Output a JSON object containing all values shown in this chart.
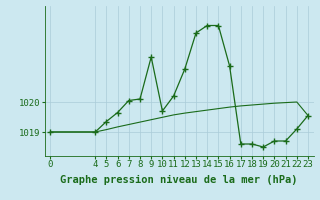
{
  "x_main": [
    0,
    4,
    5,
    6,
    7,
    8,
    9,
    10,
    11,
    12,
    13,
    14,
    15,
    16,
    17,
    18,
    19,
    20,
    21,
    22,
    23
  ],
  "y_main": [
    1019.0,
    1019.0,
    1019.35,
    1019.65,
    1020.05,
    1020.1,
    1021.5,
    1019.7,
    1020.2,
    1021.1,
    1022.3,
    1022.55,
    1022.55,
    1021.2,
    1018.6,
    1018.6,
    1018.5,
    1018.7,
    1018.7,
    1019.1,
    1019.55
  ],
  "x_trend": [
    0,
    4,
    5,
    6,
    7,
    8,
    9,
    10,
    11,
    12,
    13,
    14,
    15,
    16,
    17,
    18,
    19,
    20,
    21,
    22,
    23
  ],
  "y_trend": [
    1019.0,
    1019.0,
    1019.08,
    1019.17,
    1019.25,
    1019.33,
    1019.41,
    1019.49,
    1019.57,
    1019.63,
    1019.68,
    1019.73,
    1019.78,
    1019.83,
    1019.87,
    1019.9,
    1019.93,
    1019.96,
    1019.98,
    1020.0,
    1019.55
  ],
  "bg_color": "#cce8f0",
  "line_color": "#1a6b1a",
  "grid_color": "#aaccd8",
  "xlabel": "Graphe pression niveau de la mer (hPa)",
  "xticks": [
    0,
    4,
    5,
    6,
    7,
    8,
    9,
    10,
    11,
    12,
    13,
    14,
    15,
    16,
    17,
    18,
    19,
    20,
    21,
    22,
    23
  ],
  "ytick_labels": [
    "1019",
    "1020"
  ],
  "ytick_values": [
    1019.0,
    1020.0
  ],
  "ylim": [
    1018.2,
    1023.2
  ],
  "xlim": [
    -0.5,
    23.5
  ],
  "title_color": "#1a6b1a",
  "xlabel_fontsize": 7.5,
  "tick_fontsize": 6.5
}
